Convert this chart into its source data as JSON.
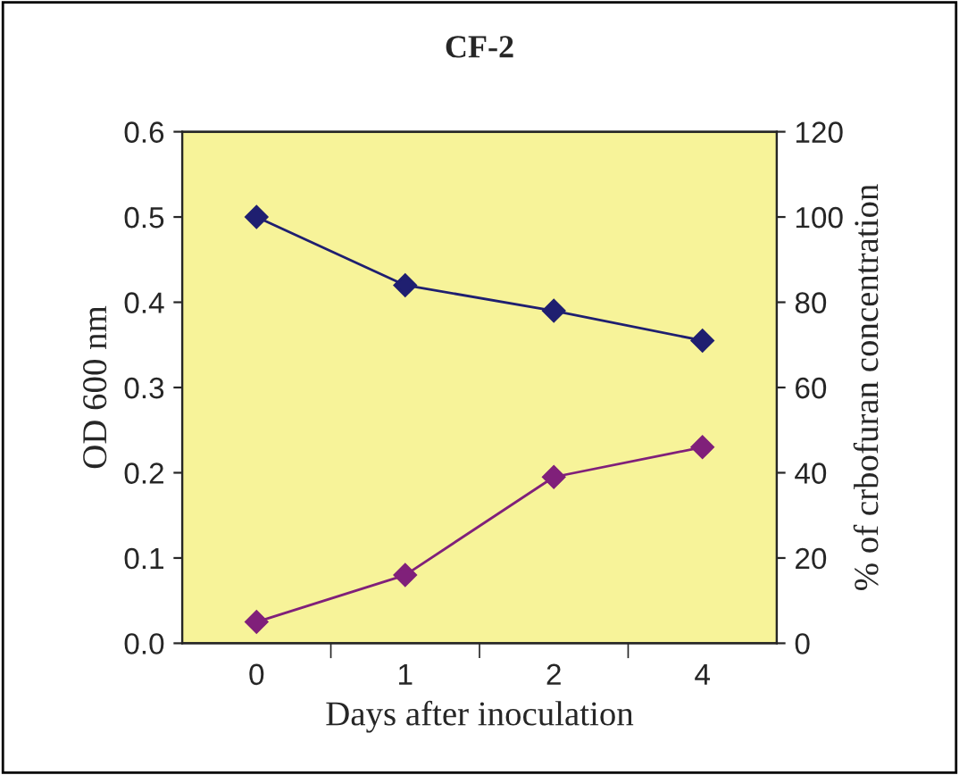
{
  "chart_data": {
    "type": "line",
    "title": "CF-2",
    "xlabel": "Days after inoculation",
    "ylabel": "OD 600 nm",
    "y2label": "% of crbofuran concentration",
    "categories": [
      "0",
      "1",
      "2",
      "4"
    ],
    "series": [
      {
        "color": "#1f1f70",
        "values": [
          100,
          84,
          78,
          71
        ],
        "axis": "y2"
      },
      {
        "color": "#80207a",
        "values": [
          0.025,
          0.08,
          0.195,
          0.23
        ]
      }
    ],
    "ylim": [
      0,
      0.6
    ],
    "yticks": [
      {
        "value": 0,
        "label": "0.0"
      },
      0.1,
      0.2,
      0.3,
      0.4,
      0.5,
      0.6
    ],
    "y2lim": [
      0,
      120
    ],
    "y2ticks": [
      0,
      20,
      40,
      60,
      80,
      100,
      120
    ],
    "marker": "diamond",
    "line_style": "solid",
    "grid": false,
    "legend": false
  }
}
